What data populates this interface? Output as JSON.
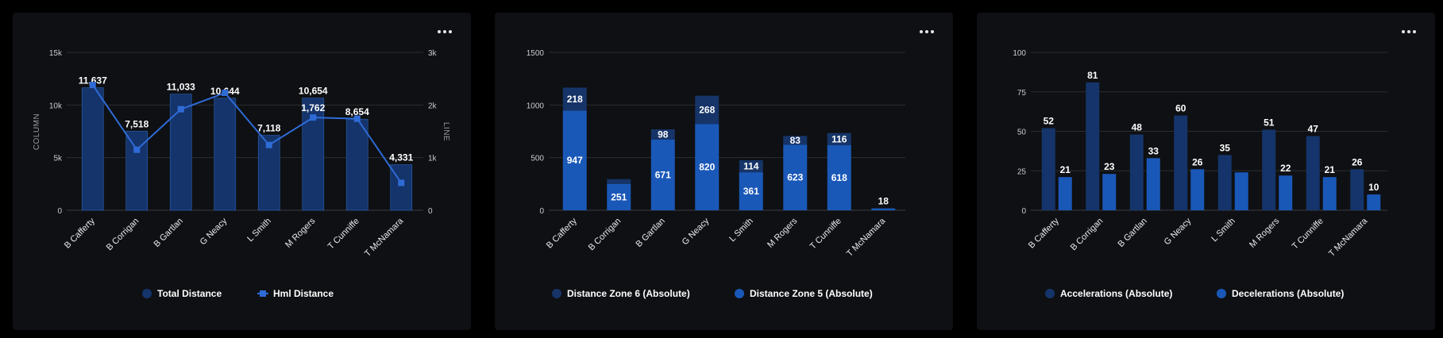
{
  "chart_data": [
    {
      "type": "bar",
      "title": "",
      "categories": [
        "B Cafferty",
        "B Corrigan",
        "B Gartlan",
        "G Neacy",
        "L Smith",
        "M Rogers",
        "T Cunniffe",
        "T McNamara"
      ],
      "series": [
        {
          "name": "Total Distance",
          "type": "bar",
          "axis": "left",
          "values": [
            11637,
            7518,
            11033,
            10644,
            7118,
            10654,
            8654,
            4331
          ],
          "color": "#15346b"
        },
        {
          "name": "Hml Distance",
          "type": "line",
          "axis": "right",
          "values": [
            2380,
            1150,
            1920,
            2230,
            1240,
            1762,
            1740,
            520
          ],
          "color": "#2f6bd6"
        }
      ],
      "data_labels": [
        "11,637",
        "7,518",
        "11,033",
        "10,644",
        "7,118",
        "10,654",
        "8,654",
        "4,331"
      ],
      "line_labels": [
        "",
        "",
        "",
        "",
        "",
        "1,762",
        "",
        ""
      ],
      "ylabel": "COLUMN",
      "y2label": "LINE",
      "ylim": [
        0,
        15000
      ],
      "y2lim": [
        0,
        3000
      ],
      "yticks": [
        "0",
        "5k",
        "10k",
        "15k"
      ],
      "y2ticks": [
        "0",
        "1k",
        "2k",
        "3k"
      ],
      "grid": true,
      "legend": "bottom"
    },
    {
      "type": "bar",
      "stacked": true,
      "title": "",
      "categories": [
        "B Cafferty",
        "B Corrigan",
        "B Gartlan",
        "G Neacy",
        "L Smith",
        "M Rogers",
        "T Cunniffe",
        "T McNamara"
      ],
      "series": [
        {
          "name": "Distance Zone 6 (Absolute)",
          "values": [
            218,
            45,
            98,
            268,
            114,
            83,
            116,
            0
          ],
          "labels": [
            "218",
            "",
            "98",
            "268",
            "114",
            "83",
            "116",
            ""
          ],
          "color": "#163468"
        },
        {
          "name": "Distance Zone 5 (Absolute)",
          "values": [
            947,
            251,
            671,
            820,
            361,
            623,
            618,
            18
          ],
          "labels": [
            "947",
            "251",
            "671",
            "820",
            "361",
            "623",
            "618",
            ""
          ],
          "color": "#1a58b8"
        }
      ],
      "top_labels": [
        "",
        "",
        "",
        "",
        "",
        "",
        "",
        "18"
      ],
      "ylim": [
        0,
        1500
      ],
      "yticks": [
        "0",
        "500",
        "1000",
        "1500"
      ],
      "grid": true,
      "legend": "bottom"
    },
    {
      "type": "bar",
      "title": "",
      "categories": [
        "B Cafferty",
        "B Corrigan",
        "B Gartlan",
        "G Neacy",
        "L Smith",
        "M Rogers",
        "T Cunniffe",
        "T McNamara"
      ],
      "series": [
        {
          "name": "Accelerations (Absolute)",
          "values": [
            52,
            81,
            48,
            60,
            35,
            51,
            47,
            26
          ],
          "labels": [
            "52",
            "81",
            "48",
            "60",
            "35",
            "51",
            "47",
            "26"
          ],
          "color": "#15346b"
        },
        {
          "name": "Decelerations (Absolute)",
          "values": [
            21,
            23,
            33,
            26,
            24,
            22,
            21,
            10
          ],
          "labels": [
            "21",
            "23",
            "33",
            "26",
            "",
            "22",
            "21",
            "10"
          ],
          "color": "#1a58b8"
        }
      ],
      "ylim": [
        0,
        100
      ],
      "yticks": [
        "0",
        "25",
        "50",
        "75",
        "100"
      ],
      "grid": true,
      "legend": "bottom"
    }
  ]
}
